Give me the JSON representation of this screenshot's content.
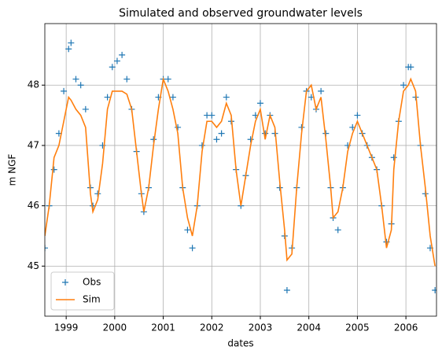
{
  "chart_data": {
    "type": "line",
    "title": "Simulated and observed groundwater levels",
    "xlabel": "dates",
    "ylabel": "m NGF",
    "x": [
      1998.56,
      1998.65,
      1998.75,
      1998.85,
      1998.95,
      1999.05,
      1999.1,
      1999.2,
      1999.3,
      1999.4,
      1999.5,
      1999.55,
      1999.65,
      1999.75,
      1999.85,
      1999.95,
      2000.05,
      2000.15,
      2000.25,
      2000.35,
      2000.45,
      2000.55,
      2000.6,
      2000.7,
      2000.8,
      2000.9,
      2001.0,
      2001.1,
      2001.2,
      2001.3,
      2001.4,
      2001.5,
      2001.6,
      2001.7,
      2001.8,
      2001.9,
      2002.0,
      2002.1,
      2002.2,
      2002.3,
      2002.4,
      2002.5,
      2002.6,
      2002.7,
      2002.8,
      2002.9,
      2003.0,
      2003.1,
      2003.2,
      2003.3,
      2003.4,
      2003.5,
      2003.55,
      2003.65,
      2003.75,
      2003.85,
      2003.95,
      2004.05,
      2004.15,
      2004.25,
      2004.35,
      2004.45,
      2004.5,
      2004.6,
      2004.7,
      2004.8,
      2004.9,
      2005.0,
      2005.1,
      2005.2,
      2005.3,
      2005.4,
      2005.5,
      2005.6,
      2005.7,
      2005.75,
      2005.85,
      2005.95,
      2006.05,
      2006.1,
      2006.2,
      2006.3,
      2006.4,
      2006.5,
      2006.6
    ],
    "series": [
      {
        "name": "Obs",
        "color": "#1f77b4",
        "marker": "plus",
        "values": [
          45.3,
          46.0,
          46.6,
          47.2,
          47.9,
          48.6,
          48.7,
          48.1,
          48.0,
          47.6,
          46.3,
          46.0,
          46.2,
          47.0,
          47.8,
          48.3,
          48.4,
          48.5,
          48.1,
          47.6,
          46.9,
          46.2,
          45.9,
          46.3,
          47.1,
          47.8,
          48.1,
          48.1,
          47.8,
          47.3,
          46.3,
          45.6,
          45.3,
          46.0,
          47.0,
          47.5,
          47.5,
          47.1,
          47.2,
          47.8,
          47.4,
          46.6,
          46.0,
          46.5,
          47.1,
          47.5,
          47.7,
          47.2,
          47.5,
          47.2,
          46.3,
          45.5,
          44.6,
          45.3,
          46.3,
          47.3,
          47.9,
          47.8,
          47.6,
          47.9,
          47.2,
          46.3,
          45.8,
          45.6,
          46.3,
          47.0,
          47.3,
          47.5,
          47.2,
          47.0,
          46.8,
          46.6,
          46.0,
          45.4,
          45.7,
          46.8,
          47.4,
          48.0,
          48.3,
          48.3,
          47.8,
          47.0,
          46.2,
          45.3,
          44.6
        ]
      },
      {
        "name": "Sim",
        "color": "#ff7f0e",
        "marker": "line",
        "values": [
          45.5,
          46.0,
          46.8,
          47.0,
          47.4,
          47.8,
          47.75,
          47.6,
          47.5,
          47.3,
          46.2,
          45.9,
          46.1,
          46.7,
          47.6,
          47.9,
          47.9,
          47.9,
          47.85,
          47.6,
          46.9,
          46.2,
          45.9,
          46.3,
          47.0,
          47.6,
          48.1,
          47.9,
          47.6,
          47.2,
          46.3,
          45.8,
          45.5,
          46.0,
          46.9,
          47.4,
          47.4,
          47.3,
          47.4,
          47.7,
          47.5,
          46.6,
          46.0,
          46.5,
          47.0,
          47.4,
          47.6,
          47.1,
          47.5,
          47.3,
          46.4,
          45.6,
          45.1,
          45.2,
          46.3,
          47.2,
          47.9,
          48.0,
          47.6,
          47.8,
          47.1,
          46.3,
          45.8,
          45.9,
          46.3,
          46.9,
          47.2,
          47.4,
          47.2,
          47.0,
          46.8,
          46.6,
          46.0,
          45.3,
          45.6,
          46.6,
          47.4,
          47.9,
          48.0,
          48.1,
          47.9,
          47.0,
          46.3,
          45.5,
          45.0
        ]
      }
    ],
    "xlim": [
      1998.56,
      2006.63
    ],
    "xticks": [
      1999,
      2000,
      2001,
      2002,
      2003,
      2004,
      2005,
      2006
    ],
    "ylim": [
      44.17,
      49.02
    ],
    "yticks": [
      45,
      46,
      47,
      48
    ],
    "grid": true,
    "legend": "lower left"
  }
}
